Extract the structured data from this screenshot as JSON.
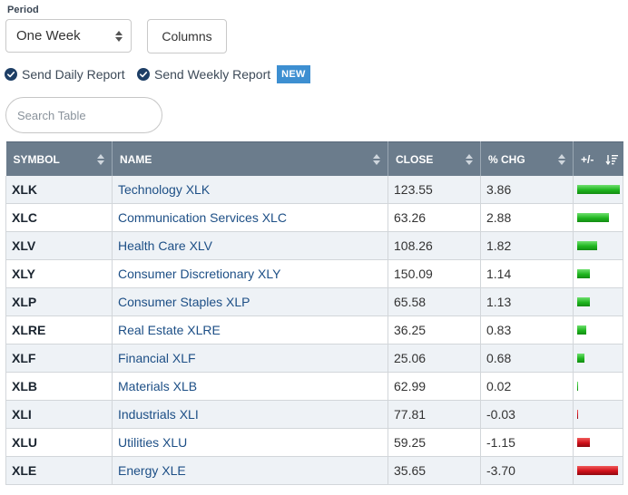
{
  "controls": {
    "period_label": "Period",
    "period_value": "One Week",
    "columns_label": "Columns",
    "daily_report_label": "Send Daily Report",
    "weekly_report_label": "Send Weekly Report",
    "new_badge": "NEW",
    "search_placeholder": "Search Table"
  },
  "colors": {
    "header_bg": "#6b7c8c",
    "positive_bar": "#1fb51f",
    "negative_bar": "#d0101a",
    "link": "#1d4f86",
    "badge": "#3d8fd1",
    "check": "#1e3f66"
  },
  "icons": {
    "period_dropdown": "sort-arrows-icon",
    "report_checks": "checkmark-circle-icon",
    "pm_column": "sort-descending-icon"
  },
  "table": {
    "headers": {
      "symbol": "SYMBOL",
      "name": "NAME",
      "close": "CLOSE",
      "pct_chg": "% CHG",
      "plus_minus": "+/-"
    },
    "rows": [
      {
        "symbol": "XLK",
        "name": "Technology XLK",
        "close": "123.55",
        "pct_chg": "3.86"
      },
      {
        "symbol": "XLC",
        "name": "Communication Services XLC",
        "close": "63.26",
        "pct_chg": "2.88"
      },
      {
        "symbol": "XLV",
        "name": "Health Care XLV",
        "close": "108.26",
        "pct_chg": "1.82"
      },
      {
        "symbol": "XLY",
        "name": "Consumer Discretionary XLY",
        "close": "150.09",
        "pct_chg": "1.14"
      },
      {
        "symbol": "XLP",
        "name": "Consumer Staples XLP",
        "close": "65.58",
        "pct_chg": "1.13"
      },
      {
        "symbol": "XLRE",
        "name": "Real Estate XLRE",
        "close": "36.25",
        "pct_chg": "0.83"
      },
      {
        "symbol": "XLF",
        "name": "Financial XLF",
        "close": "25.06",
        "pct_chg": "0.68"
      },
      {
        "symbol": "XLB",
        "name": "Materials XLB",
        "close": "62.99",
        "pct_chg": "0.02"
      },
      {
        "symbol": "XLI",
        "name": "Industrials XLI",
        "close": "77.81",
        "pct_chg": "-0.03"
      },
      {
        "symbol": "XLU",
        "name": "Utilities XLU",
        "close": "59.25",
        "pct_chg": "-1.15"
      },
      {
        "symbol": "XLE",
        "name": "Energy XLE",
        "close": "35.65",
        "pct_chg": "-3.70"
      }
    ]
  }
}
